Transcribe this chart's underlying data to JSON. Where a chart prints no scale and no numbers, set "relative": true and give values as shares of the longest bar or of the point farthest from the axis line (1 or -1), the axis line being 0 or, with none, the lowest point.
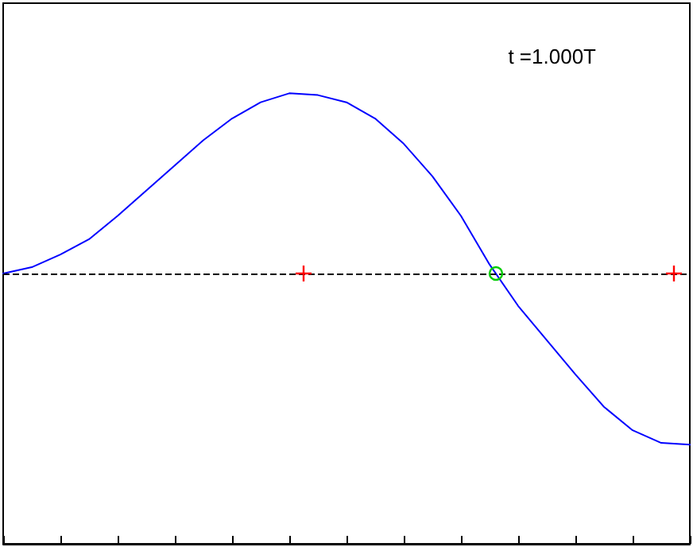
{
  "chart_data": {
    "type": "line",
    "relative": true,
    "categories": [
      null,
      null,
      null,
      null,
      null,
      null,
      null,
      null,
      null,
      null,
      null,
      null,
      null,
      null,
      null,
      null,
      null,
      null,
      null,
      null,
      null,
      null,
      null,
      null,
      null
    ],
    "series": [
      {
        "color": "#0000ff",
        "values": [
          0,
          0.035,
          0.105,
          0.19,
          0.32,
          0.46,
          0.6,
          0.74,
          0.86,
          0.95,
          1,
          0.99,
          0.95,
          0.86,
          0.72,
          0.54,
          0.32,
          0.05,
          -0.18,
          -0.37,
          -0.56,
          -0.74,
          -0.87,
          -0.94,
          -0.95
        ]
      }
    ],
    "ref_lines": [
      {
        "axis": "y",
        "value": 0,
        "color": "#000000",
        "line_style": "dashed"
      }
    ],
    "annotations": [
      "t =1.000T"
    ],
    "marker": "none",
    "line_style": "solid",
    "tick_labels": false,
    "grid": false
  }
}
